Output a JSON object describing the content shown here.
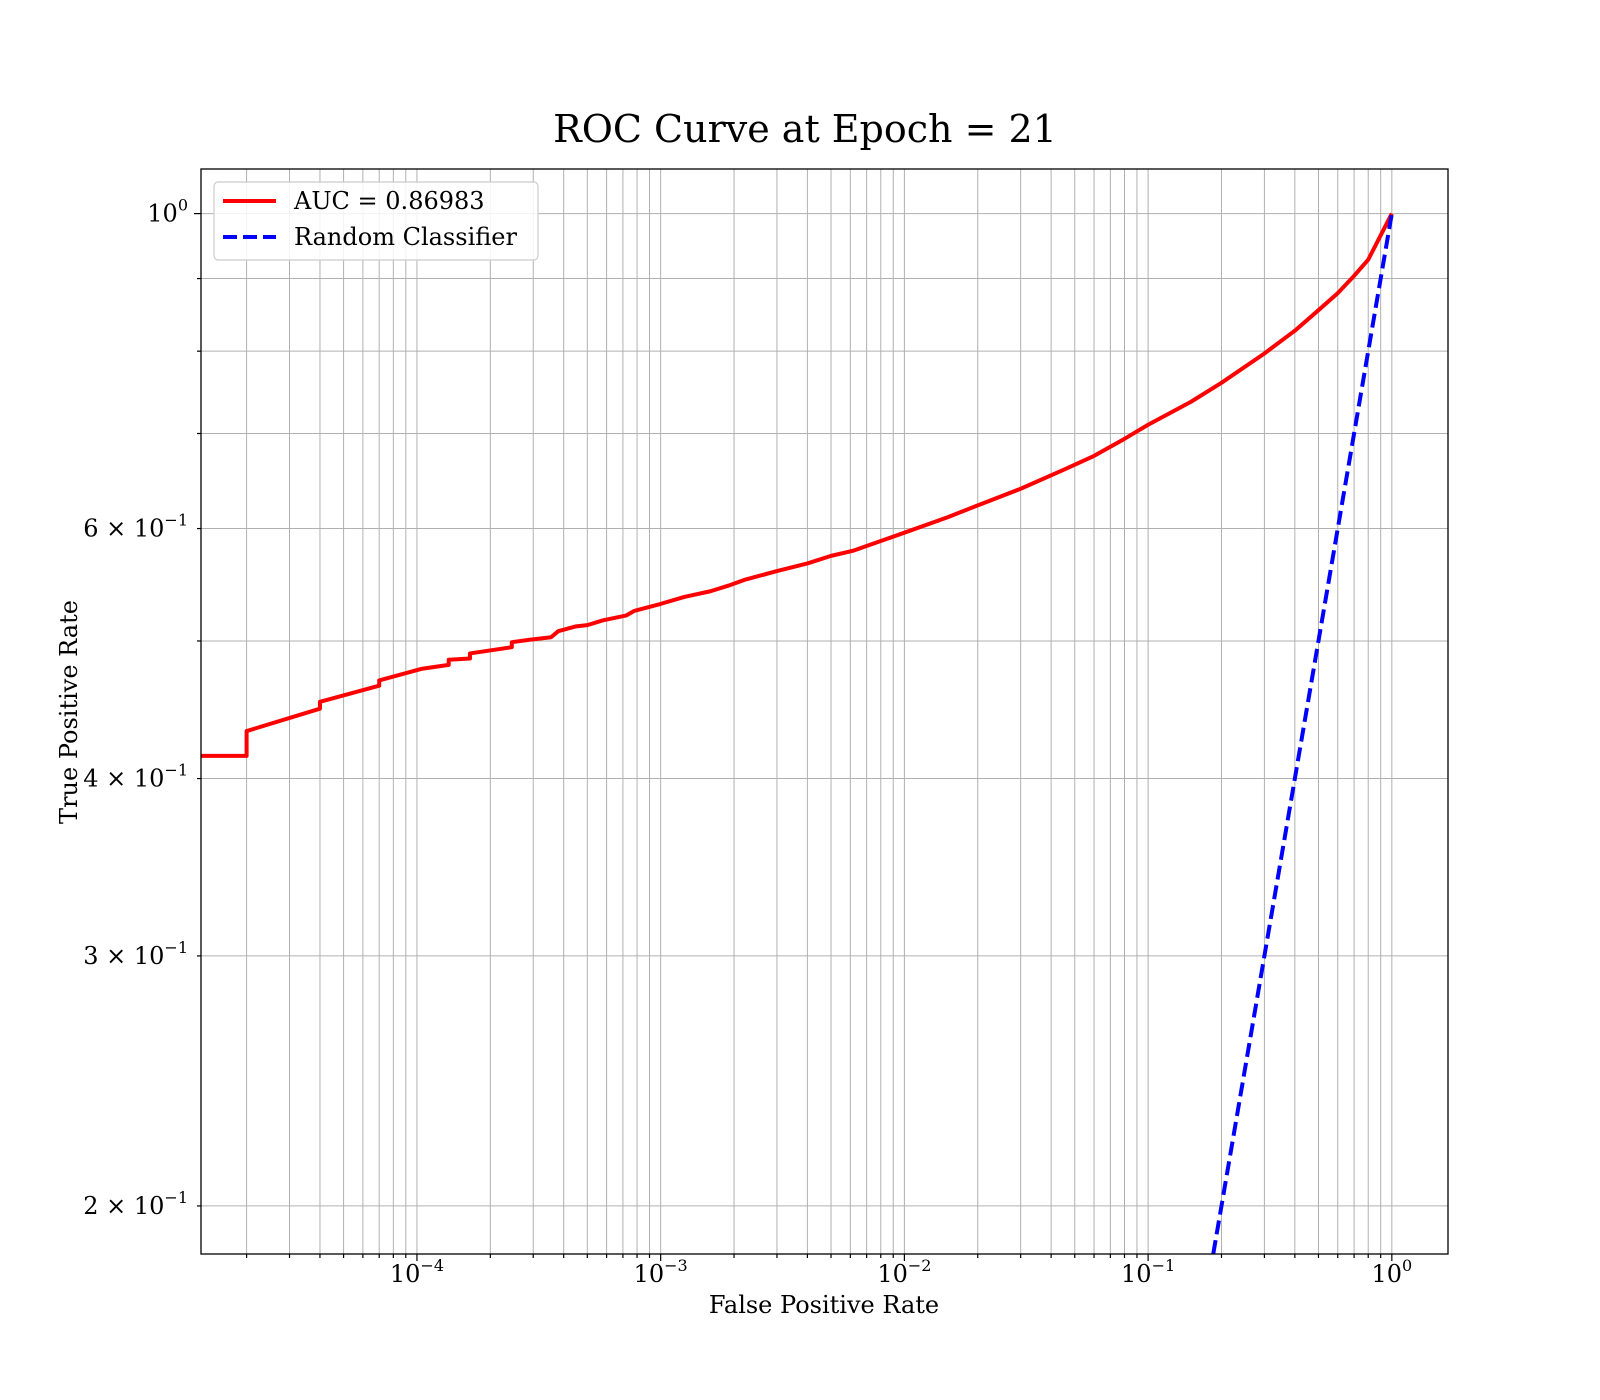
{
  "chart_data": {
    "type": "line",
    "title": "ROC Curve at Epoch = 21",
    "xlabel": "False Positive Rate",
    "ylabel": "True Positive Rate",
    "xscale": "log",
    "yscale": "log",
    "xlim": [
      1.3e-05,
      1.7
    ],
    "ylim": [
      0.185,
      1.075
    ],
    "grid": "on (major and minor)",
    "legend_placement": "top-left",
    "x_ticks": [
      {
        "value": 0.0001,
        "base": "10",
        "exp": "−4"
      },
      {
        "value": 0.001,
        "base": "10",
        "exp": "−3"
      },
      {
        "value": 0.01,
        "base": "10",
        "exp": "−2"
      },
      {
        "value": 0.1,
        "base": "10",
        "exp": "−1"
      },
      {
        "value": 1,
        "base": "10",
        "exp": "0"
      }
    ],
    "y_ticks": [
      {
        "value": 0.2,
        "base": "2 × 10",
        "exp": "−1"
      },
      {
        "value": 0.3,
        "base": "3 × 10",
        "exp": "−1"
      },
      {
        "value": 0.4,
        "base": "4 × 10",
        "exp": "−1"
      },
      {
        "value": 0.6,
        "base": "6 × 10",
        "exp": "−1"
      },
      {
        "value": 1,
        "base": "10",
        "exp": "0"
      }
    ],
    "series": [
      {
        "name": "AUC = 0.86983",
        "color": "#ff0000",
        "style": "solid",
        "x": [
          1.3e-05,
          2e-05,
          2e-05,
          4e-05,
          4e-05,
          7e-05,
          7e-05,
          0.000105,
          0.000135,
          0.000135,
          0.000165,
          0.000165,
          0.000245,
          0.000245,
          0.00029,
          0.000355,
          0.00038,
          0.00045,
          0.0005,
          0.00058,
          0.00072,
          0.00078,
          0.001,
          0.00125,
          0.0016,
          0.0019,
          0.0022,
          0.003,
          0.004,
          0.005,
          0.0062,
          0.008,
          0.01,
          0.015,
          0.02,
          0.03,
          0.045,
          0.06,
          0.08,
          0.1,
          0.15,
          0.2,
          0.3,
          0.4,
          0.5,
          0.6,
          0.7,
          0.8,
          1.0
        ],
        "y": [
          0.415,
          0.415,
          0.432,
          0.448,
          0.453,
          0.465,
          0.469,
          0.478,
          0.481,
          0.485,
          0.486,
          0.49,
          0.495,
          0.499,
          0.501,
          0.503,
          0.508,
          0.512,
          0.513,
          0.517,
          0.521,
          0.525,
          0.531,
          0.537,
          0.542,
          0.547,
          0.552,
          0.56,
          0.567,
          0.574,
          0.579,
          0.588,
          0.596,
          0.611,
          0.623,
          0.64,
          0.66,
          0.675,
          0.694,
          0.71,
          0.737,
          0.76,
          0.797,
          0.827,
          0.855,
          0.879,
          0.904,
          0.928,
          1.0
        ]
      },
      {
        "name": "Random Classifier",
        "color": "#0000ff",
        "style": "dashed",
        "x": [
          0.185,
          1.0
        ],
        "y": [
          0.185,
          1.0
        ]
      }
    ]
  }
}
